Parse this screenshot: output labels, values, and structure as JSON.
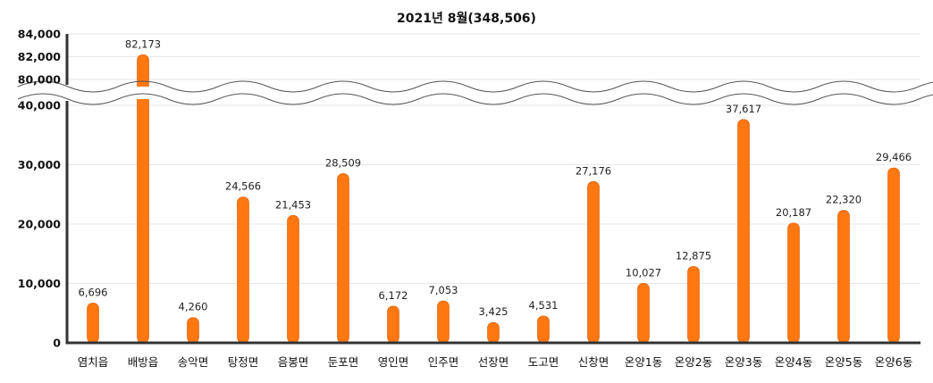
{
  "chart_data": {
    "type": "bar",
    "title": "2021년 8월(348,506)",
    "xlabel": "",
    "ylabel": "",
    "categories": [
      "염치읍",
      "배방읍",
      "송악면",
      "탕정면",
      "음봉면",
      "둔포면",
      "영인면",
      "인주면",
      "선장면",
      "도고면",
      "신창면",
      "온양1동",
      "온양2동",
      "온양3동",
      "온양4동",
      "온양5동",
      "온양6동"
    ],
    "values": [
      6696,
      82173,
      4260,
      24566,
      21453,
      28509,
      6172,
      7053,
      3425,
      4531,
      27176,
      10027,
      12875,
      37617,
      20187,
      22320,
      29466
    ],
    "value_labels": [
      "6,696",
      "82,173",
      "4,260",
      "24,566",
      "21,453",
      "28,509",
      "6,172",
      "7,053",
      "3,425",
      "4,531",
      "27,176",
      "10,027",
      "12,875",
      "37,617",
      "20,187",
      "22,320",
      "29,466"
    ],
    "ylim": [
      0,
      84000
    ],
    "axis_break": [
      40000,
      80000
    ],
    "yticks_lower": [
      0,
      10000,
      20000,
      30000,
      40000
    ],
    "yticks_upper": [
      80000,
      82000,
      84000
    ],
    "ytick_labels_lower": [
      "0",
      "10,000",
      "20,000",
      "30,000",
      "40,000"
    ],
    "ytick_labels_upper": [
      "80,000",
      "82,000",
      "84,000"
    ],
    "grid": true,
    "legend": "none",
    "colors": {
      "bar": "#ff7711",
      "bar_edge": "#d95a00",
      "axis": "#333333",
      "grid": "#e6e6e6"
    }
  }
}
